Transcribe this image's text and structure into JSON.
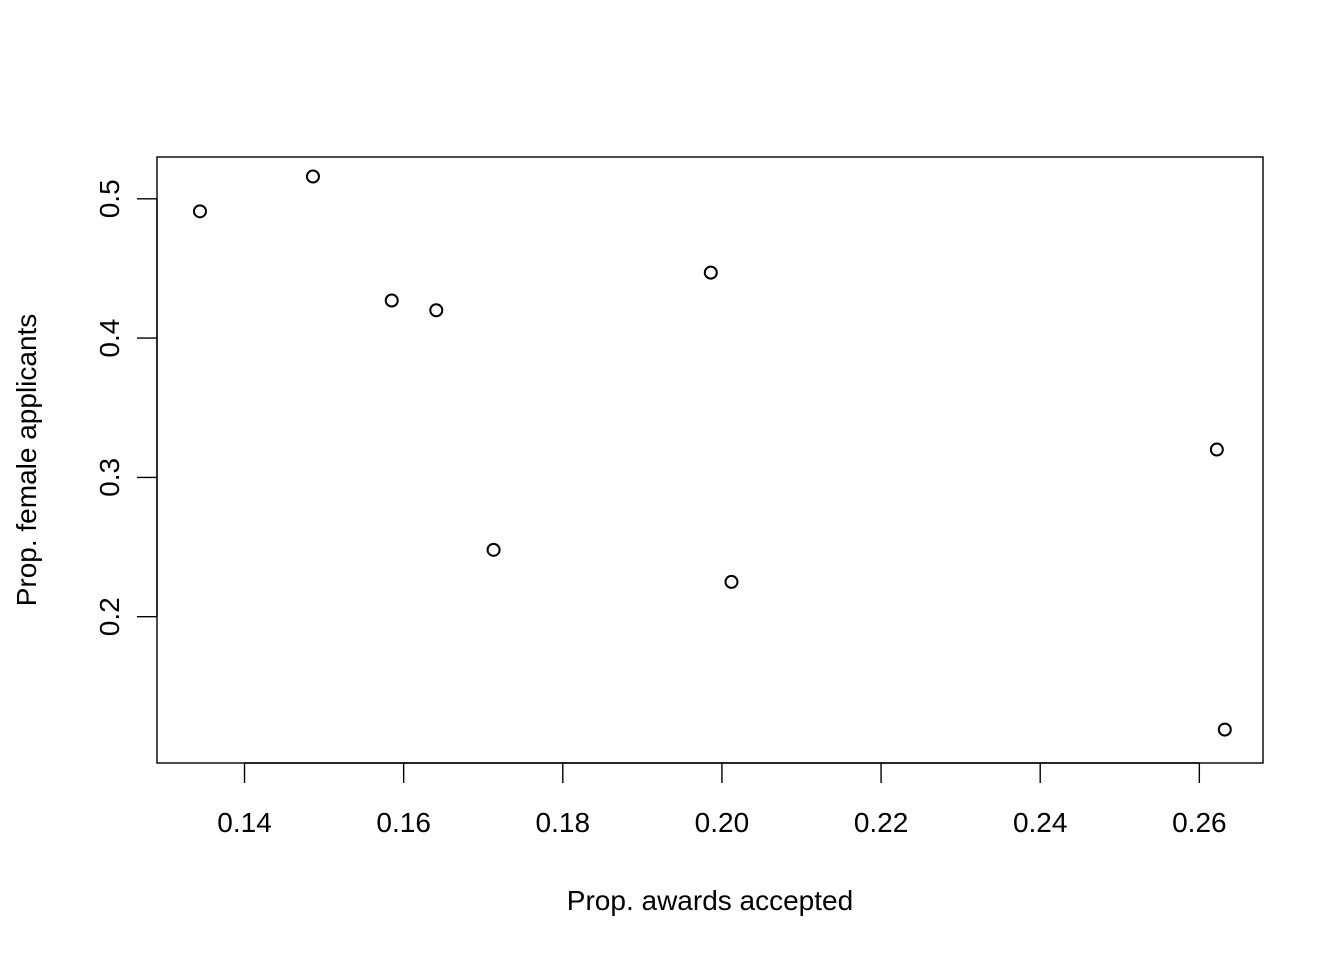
{
  "chart_data": {
    "type": "scatter",
    "title": "",
    "xlabel": "Prop. awards accepted",
    "ylabel": "Prop. female applicants",
    "xlim": [
      0.129,
      0.268
    ],
    "ylim": [
      0.095,
      0.53
    ],
    "x_ticks": [
      0.14,
      0.16,
      0.18,
      0.2,
      0.22,
      0.24,
      0.26
    ],
    "x_tick_labels": [
      "0.14",
      "0.16",
      "0.18",
      "0.20",
      "0.22",
      "0.24",
      "0.26"
    ],
    "y_ticks": [
      0.2,
      0.3,
      0.4,
      0.5
    ],
    "y_tick_labels": [
      "0.2",
      "0.3",
      "0.4",
      "0.5"
    ],
    "grid": false,
    "marker": "open-circle",
    "color": "#000000",
    "points": [
      {
        "x": 0.1344,
        "y": 0.491
      },
      {
        "x": 0.1486,
        "y": 0.516
      },
      {
        "x": 0.1585,
        "y": 0.427
      },
      {
        "x": 0.1641,
        "y": 0.42
      },
      {
        "x": 0.1713,
        "y": 0.248
      },
      {
        "x": 0.1986,
        "y": 0.447
      },
      {
        "x": 0.2012,
        "y": 0.225
      },
      {
        "x": 0.2622,
        "y": 0.32
      },
      {
        "x": 0.2632,
        "y": 0.119
      }
    ]
  }
}
